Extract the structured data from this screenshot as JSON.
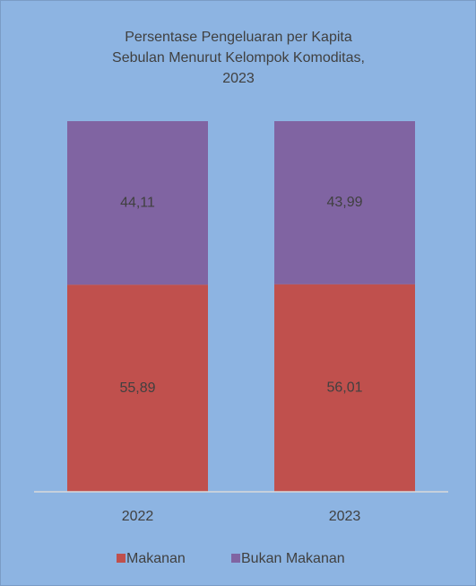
{
  "chart_data": {
    "type": "stacked_bar",
    "title": [
      "Persentase Pengeluaran per Kapita",
      "Sebulan Menurut Kelompok Komoditas,",
      "2023"
    ],
    "categories": [
      "2022",
      "2023"
    ],
    "series": [
      {
        "name": "Makanan",
        "color": "#c0504d",
        "values": [
          55.89,
          56.01
        ],
        "value_labels": [
          "55,89",
          "56,01"
        ]
      },
      {
        "name": "Bukan Makanan",
        "color": "#8064a2",
        "values": [
          44.11,
          43.99
        ],
        "value_labels": [
          "44,11",
          "43,99"
        ]
      }
    ],
    "ylim": [
      0,
      100
    ],
    "legend": "bottom"
  }
}
